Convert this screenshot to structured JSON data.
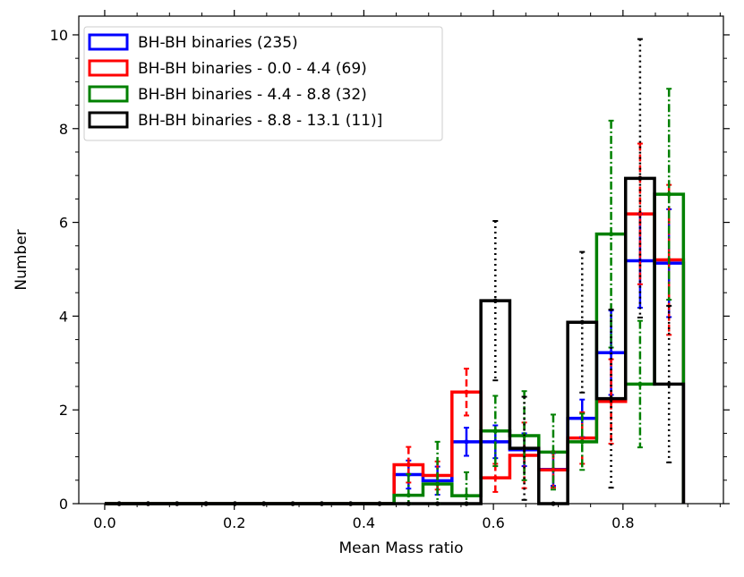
{
  "chart_data": {
    "type": "step-histogram",
    "title": "",
    "xlabel": "Mean Mass ratio",
    "ylabel": "Number",
    "xlim": [
      -0.04,
      0.955
    ],
    "ylim": [
      0,
      10.4
    ],
    "xticks": [
      0.0,
      0.2,
      0.4,
      0.6,
      0.8
    ],
    "xtick_labels": [
      "0.0",
      "0.2",
      "0.4",
      "0.6",
      "0.8"
    ],
    "yticks": [
      0,
      2,
      4,
      6,
      8,
      10
    ],
    "ytick_labels": [
      "0",
      "2",
      "4",
      "6",
      "8",
      "10"
    ],
    "legend_position": "top-left",
    "bin_edges": [
      0.0,
      0.0447,
      0.0893,
      0.134,
      0.1787,
      0.2233,
      0.268,
      0.3127,
      0.3573,
      0.402,
      0.4467,
      0.4913,
      0.536,
      0.5807,
      0.6253,
      0.67,
      0.7147,
      0.7593,
      0.804,
      0.8487,
      0.8933
    ],
    "series": [
      {
        "name": "BH-BH binaries (235)",
        "color": "#0000ff",
        "linestyle": "solid",
        "values": [
          0,
          0,
          0,
          0,
          0,
          0,
          0,
          0,
          0,
          0,
          0.62,
          0.49,
          1.32,
          1.32,
          1.15,
          0.73,
          1.82,
          3.22,
          5.18,
          5.13
        ],
        "errors": [
          0,
          0,
          0,
          0,
          0,
          0,
          0,
          0,
          0,
          0,
          0.3,
          0.3,
          0.3,
          0.35,
          0.35,
          0.35,
          0.4,
          0.9,
          1.0,
          1.15
        ]
      },
      {
        "name": "BH-BH binaries - 0.0 - 4.4 (69)",
        "color": "#ff0000",
        "linestyle": "dashed",
        "values": [
          0,
          0,
          0,
          0,
          0,
          0,
          0,
          0,
          0,
          0,
          0.83,
          0.6,
          2.38,
          0.55,
          1.03,
          0.72,
          1.4,
          2.18,
          6.18,
          5.2
        ],
        "errors": [
          0,
          0,
          0,
          0,
          0,
          0,
          0,
          0,
          0,
          0,
          0.38,
          0.3,
          0.5,
          0.3,
          0.7,
          0.38,
          0.55,
          0.9,
          1.5,
          1.6
        ]
      },
      {
        "name": "BH-BH binaries - 4.4 - 8.8 (32)",
        "color": "#008000",
        "linestyle": "dashdot",
        "values": [
          0,
          0,
          0,
          0,
          0,
          0,
          0,
          0,
          0,
          0,
          0.18,
          0.42,
          0.17,
          1.55,
          1.45,
          1.1,
          1.32,
          5.75,
          2.55,
          6.6
        ],
        "errors": [
          0,
          0,
          0,
          0,
          0,
          0,
          0,
          0,
          0,
          0,
          0.45,
          0.9,
          0.5,
          0.75,
          0.95,
          0.8,
          0.6,
          2.42,
          1.35,
          2.25
        ]
      },
      {
        "name": "BH-BH binaries - 8.8 - 13.1 (11)]",
        "color": "#000000",
        "linestyle": "dotted",
        "values": [
          0,
          0,
          0,
          0,
          0,
          0,
          0,
          0,
          0,
          0,
          0,
          0,
          0,
          4.33,
          1.18,
          0,
          3.87,
          2.24,
          6.94,
          2.55
        ],
        "errors": [
          0,
          0,
          0,
          0,
          0,
          0,
          0,
          0,
          0,
          0,
          0,
          0,
          0,
          1.7,
          1.1,
          0,
          1.5,
          1.9,
          2.97,
          1.67
        ]
      }
    ]
  }
}
